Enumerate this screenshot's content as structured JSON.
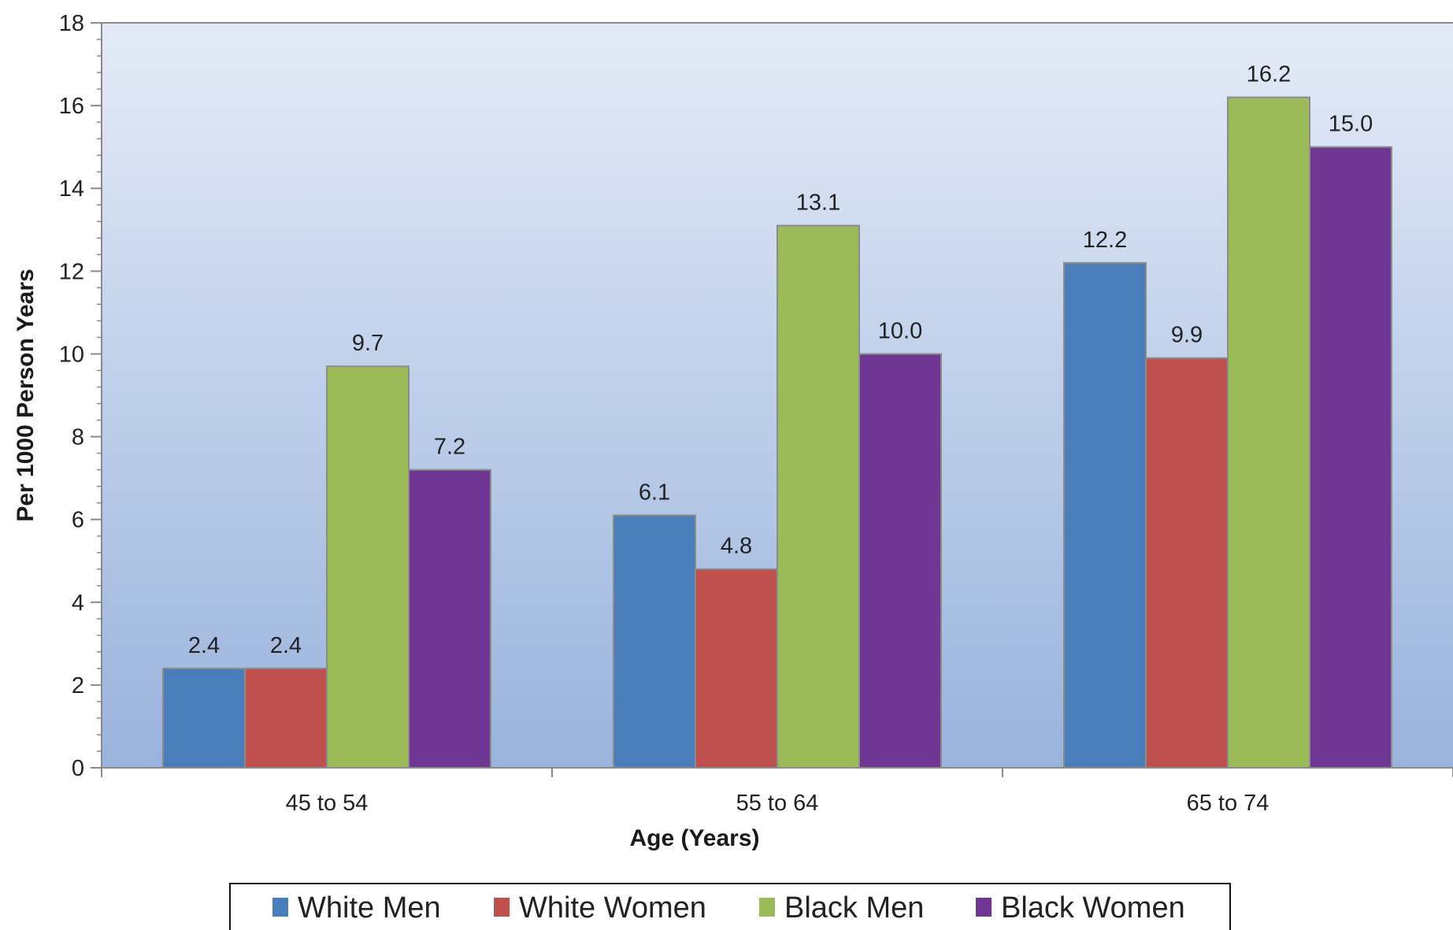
{
  "chart_data": {
    "type": "bar",
    "title": "",
    "xlabel": "Age (Years)",
    "ylabel": "Per 1000 Person Years",
    "ylim": [
      0,
      18
    ],
    "y_ticks": [
      0,
      2,
      4,
      6,
      8,
      10,
      12,
      14,
      16,
      18
    ],
    "categories": [
      "45 to 54",
      "55 to 64",
      "65 to 74"
    ],
    "series": [
      {
        "name": "White Men",
        "color": "#4a7ebb",
        "values": [
          2.4,
          6.1,
          12.2
        ],
        "labels": [
          "2.4",
          "6.1",
          "12.2"
        ]
      },
      {
        "name": "White Women",
        "color": "#c0504d",
        "values": [
          2.4,
          4.8,
          9.9
        ],
        "labels": [
          "2.4",
          "4.8",
          "9.9"
        ]
      },
      {
        "name": "Black Men",
        "color": "#9bbb59",
        "values": [
          9.7,
          13.1,
          16.2
        ],
        "labels": [
          "9.7",
          "13.1",
          "16.2"
        ]
      },
      {
        "name": "Black Women",
        "color": "#6f3793",
        "values": [
          7.2,
          10.0,
          15.0
        ],
        "labels": [
          "7.2",
          "10.0",
          "15.0"
        ]
      }
    ],
    "grid": false,
    "legend_position": "bottom",
    "background_gradient": [
      "#e4ebf7",
      "#99b3dc"
    ]
  }
}
